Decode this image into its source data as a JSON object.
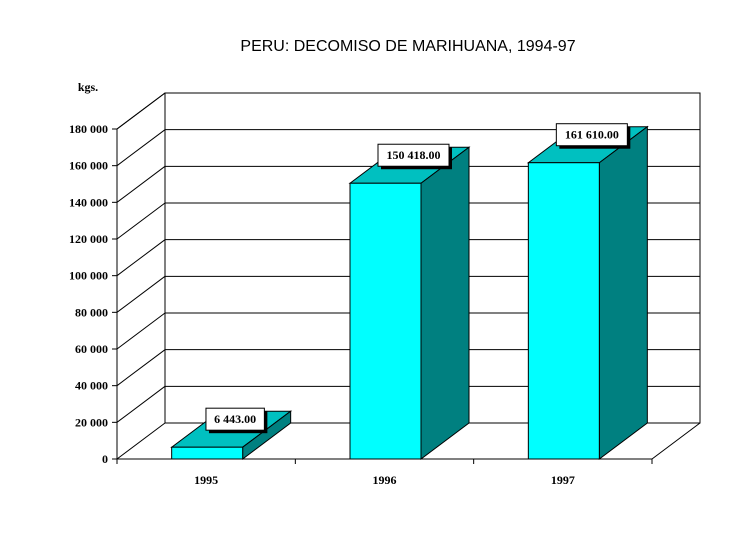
{
  "chart_data": {
    "type": "bar",
    "title": "PERU: DECOMISO DE MARIHUANA, 1994-97",
    "ylabel": "kgs.",
    "xlabel": "",
    "categories": [
      "1995",
      "1996",
      "1997"
    ],
    "values": [
      6443.0,
      150418.0,
      161610.0
    ],
    "data_labels": [
      "6 443.00",
      "150 418.00",
      "161 610.00"
    ],
    "ylim": [
      0,
      180000
    ],
    "yticks": [
      0,
      20000,
      40000,
      60000,
      80000,
      100000,
      120000,
      140000,
      160000,
      180000
    ],
    "ytick_labels": [
      "0",
      "20 000",
      "40 000",
      "60 000",
      "80 000",
      "100 000",
      "120 000",
      "140 000",
      "160 000",
      "180 000"
    ],
    "grid": true,
    "style": "3d-column",
    "colors": {
      "front": "#00ffff",
      "top": "#00c0c0",
      "side": "#008080",
      "grid": "#000000"
    }
  }
}
